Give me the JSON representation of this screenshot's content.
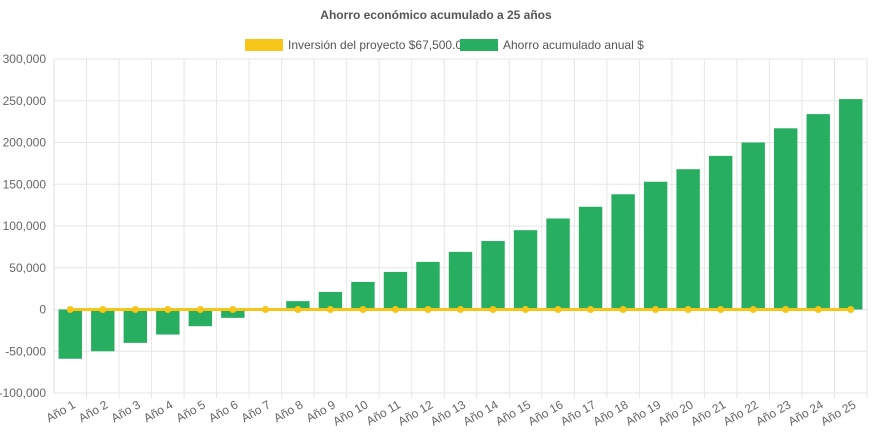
{
  "chart_data": {
    "type": "bar",
    "title": "Ahorro económico acumulado a 25 años",
    "xlabel": "",
    "ylabel": "",
    "ylim": [
      -100000,
      300000
    ],
    "ytick_labels": [
      "-100,000",
      "-50,000",
      "0",
      "50,000",
      "100,000",
      "150,000",
      "200,000",
      "250,000",
      "300,000"
    ],
    "ytick_values": [
      -100000,
      -50000,
      0,
      50000,
      100000,
      150000,
      200000,
      250000,
      300000
    ],
    "grid": true,
    "legend_position": "top",
    "categories": [
      "Año 1",
      "Año 2",
      "Año 3",
      "Año 4",
      "Año 5",
      "Año 6",
      "Año 7",
      "Año 8",
      "Año 9",
      "Año 10",
      "Año 11",
      "Año 12",
      "Año 13",
      "Año 14",
      "Año 15",
      "Año 16",
      "Año 17",
      "Año 18",
      "Año 19",
      "Año 20",
      "Año 21",
      "Año 22",
      "Año 23",
      "Año 24",
      "Año 25"
    ],
    "series": [
      {
        "name": "Inversión del proyecto $67,500.00",
        "type": "line",
        "color": "#f5c518",
        "values": [
          0,
          0,
          0,
          0,
          0,
          0,
          0,
          0,
          0,
          0,
          0,
          0,
          0,
          0,
          0,
          0,
          0,
          0,
          0,
          0,
          0,
          0,
          0,
          0,
          0
        ]
      },
      {
        "name": "Ahorro acumulado anual $",
        "type": "bar",
        "color": "#27ae60",
        "values": [
          -59000,
          -50000,
          -40000,
          -30000,
          -20000,
          -10000,
          0,
          10000,
          21000,
          33000,
          45000,
          57000,
          69000,
          82000,
          95000,
          109000,
          123000,
          138000,
          153000,
          168000,
          184000,
          200000,
          217000,
          234000,
          252000
        ]
      }
    ]
  }
}
